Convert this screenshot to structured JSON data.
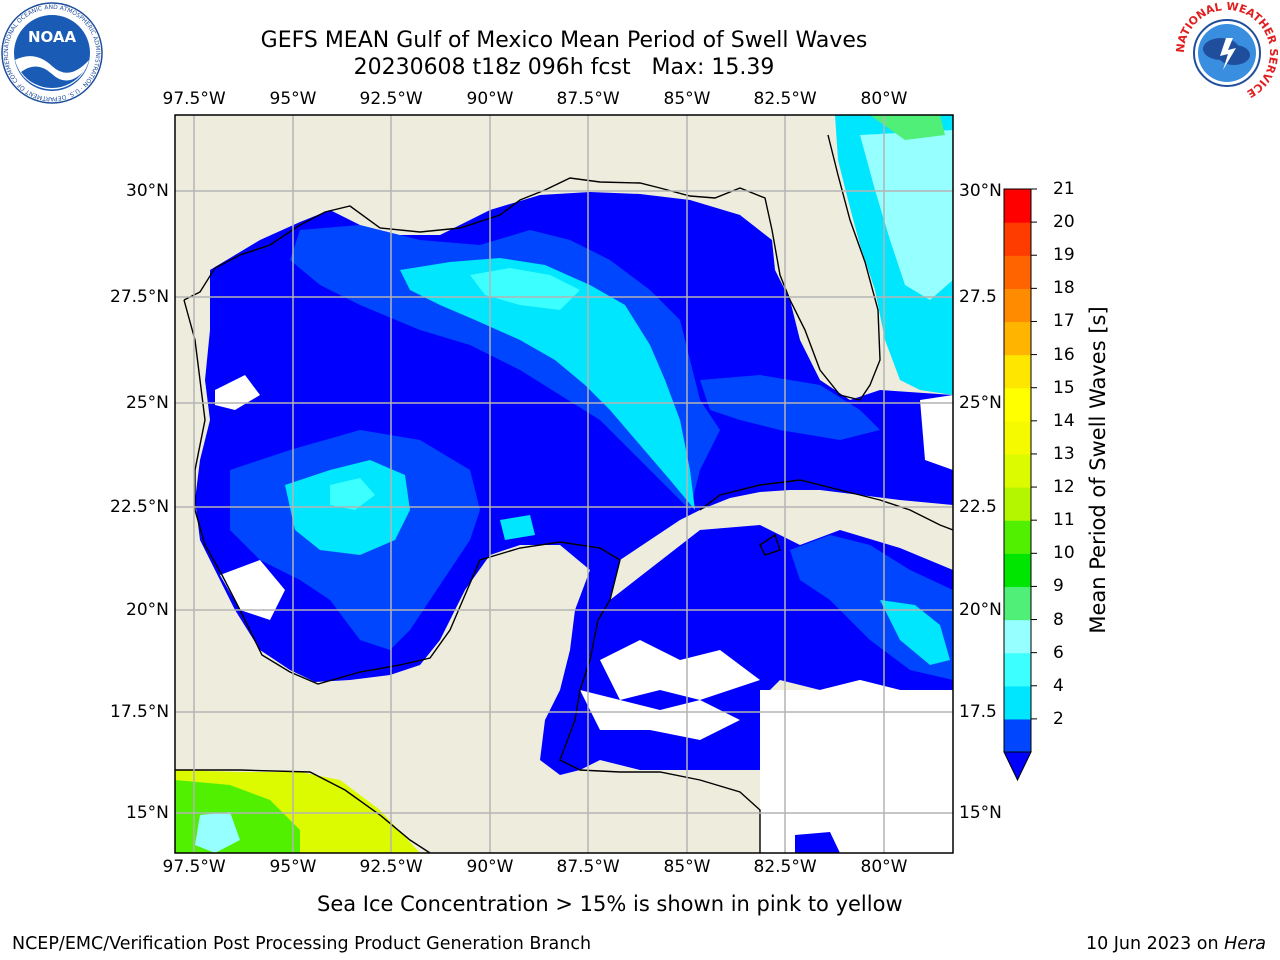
{
  "title": {
    "line1": "GEFS MEAN Gulf of Mexico Mean Period of Swell Waves",
    "line2": "20230608 t18z 096h fcst   Max: 15.39"
  },
  "map": {
    "lon_labels": [
      "97.5°W",
      "95°W",
      "92.5°W",
      "90°W",
      "87.5°W",
      "85°W",
      "82.5°W",
      "80°W"
    ],
    "lat_labels_left": [
      "30°N",
      "27.5°N",
      "25°N",
      "22.5°N",
      "20°N",
      "17.5°N",
      "15°N"
    ],
    "lat_labels_right": [
      "30°N",
      "27.5",
      "25°N",
      "22.5",
      "20°N",
      "17.5",
      "15°N"
    ],
    "land_color": "#eeecdc",
    "gridline_color": "#b4b4b4"
  },
  "colorbar": {
    "label": "Mean Period of Swell Waves [s]",
    "ticks": [
      "21",
      "20",
      "19",
      "18",
      "17",
      "16",
      "15",
      "14",
      "13",
      "12",
      "11",
      "10",
      "9",
      "8",
      "6",
      "4",
      "2"
    ],
    "colors": [
      "#0046ff",
      "#00e6ff",
      "#3cffff",
      "#96ffff",
      "#50f078",
      "#00e600",
      "#50f000",
      "#b4f500",
      "#dcfa00",
      "#f5fa00",
      "#ffff00",
      "#ffe600",
      "#ffb400",
      "#ff8c00",
      "#ff6400",
      "#ff3c00",
      "#ff0000"
    ],
    "extend_color": "#0000ff"
  },
  "subtitle": "Sea Ice Concentration > 15% is shown in pink to yellow",
  "footer": {
    "left": "NCEP/EMC/Verification Post Processing Product Generation Branch",
    "right_prefix": "10 Jun 2023 on ",
    "right_machine": "Hera"
  },
  "logos": {
    "left": "NOAA",
    "left_ring": "NATIONAL OCEANIC AND ATMOSPHERIC ADMINISTRATION · U.S. DEPARTMENT OF COMMERCE",
    "right_ring": "NATIONAL WEATHER SERVICE"
  }
}
